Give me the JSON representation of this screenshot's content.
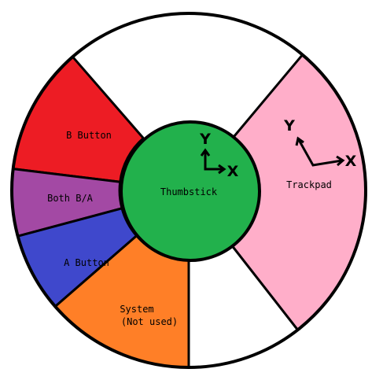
{
  "diagram": {
    "segments": [
      {
        "id": "b-button",
        "label": "B Button",
        "color": "#ed1c24"
      },
      {
        "id": "both-ba",
        "label": "Both B/A",
        "color": "#a349a4"
      },
      {
        "id": "a-button",
        "label": "A Button",
        "color": "#3f48cc"
      },
      {
        "id": "system",
        "label_line1": "System",
        "label_line2": "(Not used)",
        "color": "#ff7f27"
      },
      {
        "id": "trackpad",
        "label": "Trackpad",
        "color": "#ffaec9"
      }
    ],
    "center": {
      "label": "Thumbstick",
      "color": "#22b14c"
    },
    "axes": {
      "x": "X",
      "y": "Y"
    },
    "outline_color": "#000000",
    "background_color": "#ffffff"
  }
}
